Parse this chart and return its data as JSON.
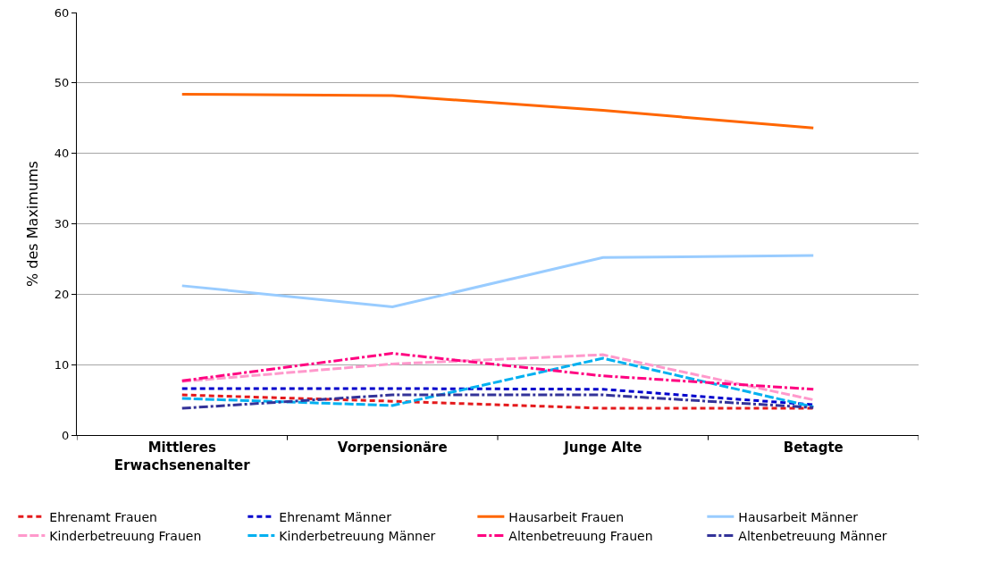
{
  "chart_data": {
    "type": "line",
    "ylabel": "% des Maximums",
    "categories": [
      "Mittleres Erwachsenenalter",
      "Vorpensionäre",
      "Junge Alte",
      "Betagte"
    ],
    "ylim": [
      0,
      60
    ],
    "yticks": [
      0,
      10,
      20,
      30,
      40,
      50,
      60
    ],
    "grid": "y",
    "legend": "bottom",
    "marker": "none",
    "series": [
      {
        "name": "Ehrenamt Frauen",
        "color": "#e41a1c",
        "line_style": "dotted",
        "values": [
          5.7,
          4.8,
          3.8,
          3.8
        ]
      },
      {
        "name": "Ehrenamt Männer",
        "color": "#0000cc",
        "line_style": "dotted",
        "values": [
          6.6,
          6.6,
          6.5,
          4.3
        ]
      },
      {
        "name": "Hausarbeit Frauen",
        "color": "#ff6600",
        "line_style": "solid",
        "values": [
          48.4,
          48.2,
          46.1,
          43.6
        ]
      },
      {
        "name": "Hausarbeit Männer",
        "color": "#99ccff",
        "line_style": "solid",
        "values": [
          21.2,
          18.2,
          25.2,
          25.5
        ]
      },
      {
        "name": "Kinderbetreuung Frauen",
        "color": "#ff99cc",
        "line_style": "dashed",
        "values": [
          7.6,
          10.1,
          11.4,
          5.0
        ]
      },
      {
        "name": "Kinderbetreuung Männer",
        "color": "#00b0f0",
        "line_style": "dashed",
        "values": [
          5.2,
          4.2,
          10.9,
          4.0
        ]
      },
      {
        "name": "Altenbetreuung Frauen",
        "color": "#ff0080",
        "line_style": "dashdot",
        "values": [
          7.7,
          11.6,
          8.4,
          6.5
        ]
      },
      {
        "name": "Altenbetreuung Männer",
        "color": "#333399",
        "line_style": "dashdot",
        "values": [
          3.8,
          5.7,
          5.7,
          3.9
        ]
      }
    ]
  }
}
